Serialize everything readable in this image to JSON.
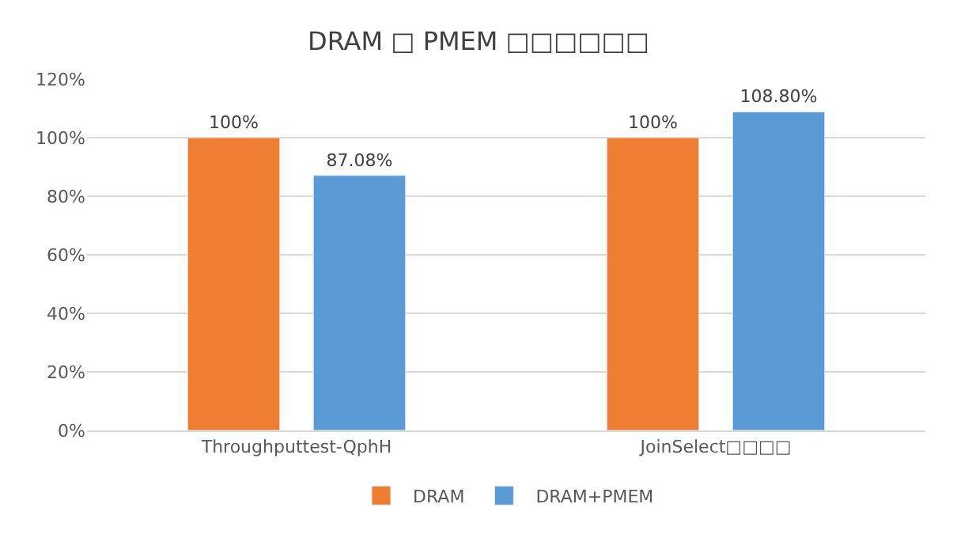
{
  "chart_data": {
    "type": "bar",
    "title": "DRAM □ PMEM □□□□□□",
    "categories": [
      "Throughputtest-QphH",
      "JoinSelect□□□□"
    ],
    "series": [
      {
        "name": "DRAM",
        "color": "#ed7d31",
        "values": [
          100,
          100
        ],
        "value_labels": [
          "100%",
          "100%"
        ]
      },
      {
        "name": "DRAM+PMEM",
        "color": "#5b9bd5",
        "values": [
          87.08,
          108.8
        ],
        "value_labels": [
          "87.08%",
          "108.80%"
        ]
      }
    ],
    "ylim": [
      0,
      120
    ],
    "yticks": [
      {
        "value": 0,
        "label": "0%"
      },
      {
        "value": 20,
        "label": "20%"
      },
      {
        "value": 40,
        "label": "40%"
      },
      {
        "value": 60,
        "label": "60%"
      },
      {
        "value": 80,
        "label": "80%"
      },
      {
        "value": 100,
        "label": "100%"
      },
      {
        "value": 120,
        "label": "120%"
      }
    ],
    "grid": "y",
    "legend": "bottom"
  }
}
